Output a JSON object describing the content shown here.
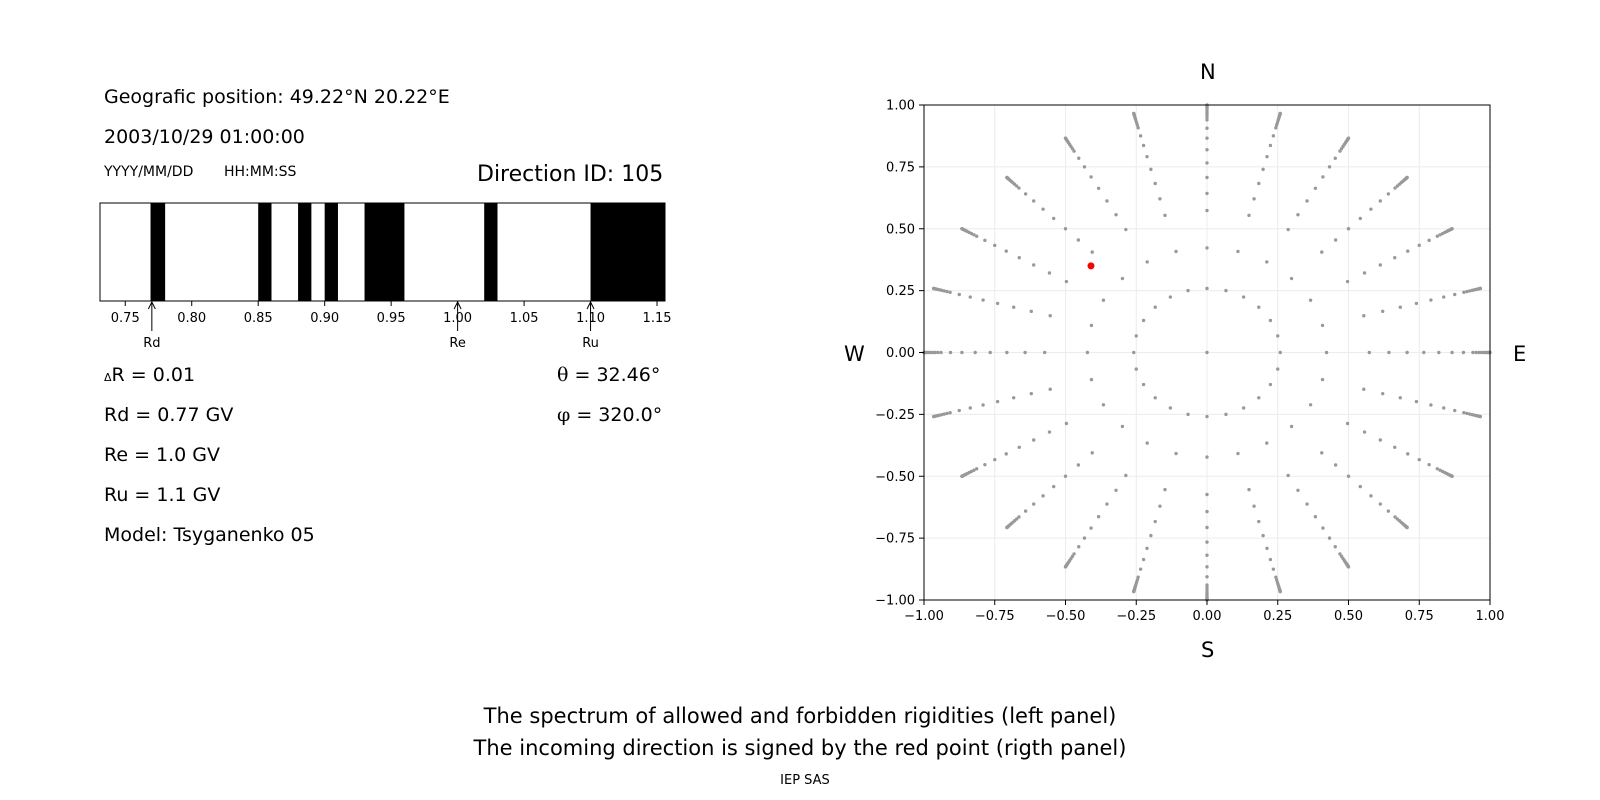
{
  "info": {
    "position_label": "Geografic position: 49.22°N 20.22°E",
    "datetime": "2003/10/29 01:00:00",
    "date_format": "YYYY/MM/DD",
    "time_format": "HH:MM:SS",
    "direction_id": "Direction ID: 105"
  },
  "params": {
    "delta_symbol": "Δ",
    "delta_r": "R = 0.01",
    "rd": "Rd = 0.77 GV",
    "re": "Re = 1.0 GV",
    "ru": "Ru = 1.1 GV",
    "model": "Model: Tsyganenko 05",
    "theta_symbol": "θ",
    "theta": " = 32.46°",
    "phi_symbol": "φ",
    "phi": " = 320.0°"
  },
  "compass": {
    "north": "N",
    "south": "S",
    "west": "W",
    "east": "E"
  },
  "caption": {
    "line1": "The spectrum of allowed and forbidden rigidities (left panel)",
    "line2": "The incoming direction is signed by the red point (rigth panel)",
    "credit": "IEP SAS"
  },
  "colors": {
    "forbidden": "#000000",
    "allowed": "#ffffff",
    "grid_point": "#999999",
    "direction_point": "#ff0000"
  },
  "chart_data": [
    {
      "type": "bar",
      "subtype": "rigidity-spectrum",
      "xlim": [
        0.731,
        1.156
      ],
      "xticks": [
        0.75,
        0.8,
        0.85,
        0.9,
        0.95,
        1.0,
        1.05,
        1.1,
        1.15
      ],
      "xtick_labels": [
        "0.75",
        "0.80",
        "0.85",
        "0.90",
        "0.95",
        "1.00",
        "1.05",
        "1.10",
        "1.15"
      ],
      "forbidden_bands": [
        [
          0.769,
          0.78
        ],
        [
          0.85,
          0.86
        ],
        [
          0.88,
          0.89
        ],
        [
          0.9,
          0.91
        ],
        [
          0.93,
          0.96
        ],
        [
          1.02,
          1.03
        ],
        [
          1.1,
          1.156
        ]
      ],
      "markers": [
        {
          "name": "Rd",
          "value": 0.77
        },
        {
          "name": "Re",
          "value": 1.0
        },
        {
          "name": "Ru",
          "value": 1.1
        }
      ]
    },
    {
      "type": "scatter",
      "subtype": "directions",
      "xlim": [
        -1.0,
        1.0
      ],
      "ylim": [
        -1.0,
        1.0
      ],
      "grid": true,
      "xticks": [
        -1.0,
        -0.75,
        -0.5,
        -0.25,
        0.0,
        0.25,
        0.5,
        0.75,
        1.0
      ],
      "xtick_labels": [
        "−1.00",
        "−0.75",
        "−0.50",
        "−0.25",
        "0.00",
        "0.25",
        "0.50",
        "0.75",
        "1.00"
      ],
      "yticks": [
        -1.0,
        -0.75,
        -0.5,
        -0.25,
        0.0,
        0.25,
        0.5,
        0.75,
        1.0
      ],
      "ytick_labels": [
        "−1.00",
        "−0.75",
        "−0.50",
        "−0.25",
        "0.00",
        "0.25",
        "0.50",
        "0.75",
        "1.00"
      ],
      "grid_rays": 24,
      "grid_zeniths_deg": [
        0,
        15,
        25,
        35,
        40,
        45,
        50,
        55,
        60,
        65,
        70,
        72,
        74,
        76,
        78,
        80,
        82,
        84,
        86,
        88,
        90
      ],
      "selected": {
        "theta_deg": 32.46,
        "phi_deg": 320.0,
        "x": -0.41,
        "y": 0.35
      }
    }
  ]
}
